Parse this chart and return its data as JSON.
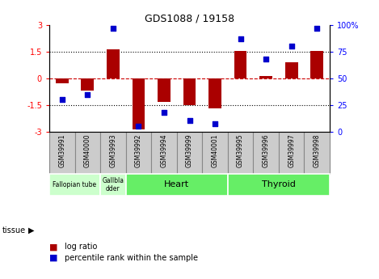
{
  "title": "GDS1088 / 19158",
  "samples": [
    "GSM39991",
    "GSM40000",
    "GSM39993",
    "GSM39992",
    "GSM39994",
    "GSM39999",
    "GSM40001",
    "GSM39995",
    "GSM39996",
    "GSM39997",
    "GSM39998"
  ],
  "log_ratio": [
    -0.3,
    -0.7,
    1.65,
    -2.9,
    -1.35,
    -1.5,
    -1.7,
    1.55,
    0.15,
    0.9,
    1.55
  ],
  "percentile": [
    30,
    35,
    97,
    5,
    18,
    10,
    7,
    87,
    68,
    80,
    97
  ],
  "ylim": [
    -3,
    3
  ],
  "yticks_left": [
    -3,
    -1.5,
    0,
    1.5,
    3
  ],
  "yticks_right": [
    0,
    25,
    50,
    75,
    100
  ],
  "bar_color": "#aa0000",
  "dot_color": "#0000cc",
  "hline0_color": "#cc0000",
  "dotted_color": "#000000",
  "tissue_groups": [
    {
      "label": "Fallopian tube",
      "start": 0,
      "end": 2,
      "color": "#ccffcc",
      "fontsize": 5.5
    },
    {
      "label": "Gallbla\ndder",
      "start": 2,
      "end": 3,
      "color": "#ccffcc",
      "fontsize": 5.5
    },
    {
      "label": "Heart",
      "start": 3,
      "end": 7,
      "color": "#66ee66",
      "fontsize": 8
    },
    {
      "label": "Thyroid",
      "start": 7,
      "end": 11,
      "color": "#66ee66",
      "fontsize": 8
    }
  ],
  "bar_width": 0.5,
  "dot_size": 25,
  "sample_box_color": "#cccccc",
  "sample_box_edge": "#888888"
}
